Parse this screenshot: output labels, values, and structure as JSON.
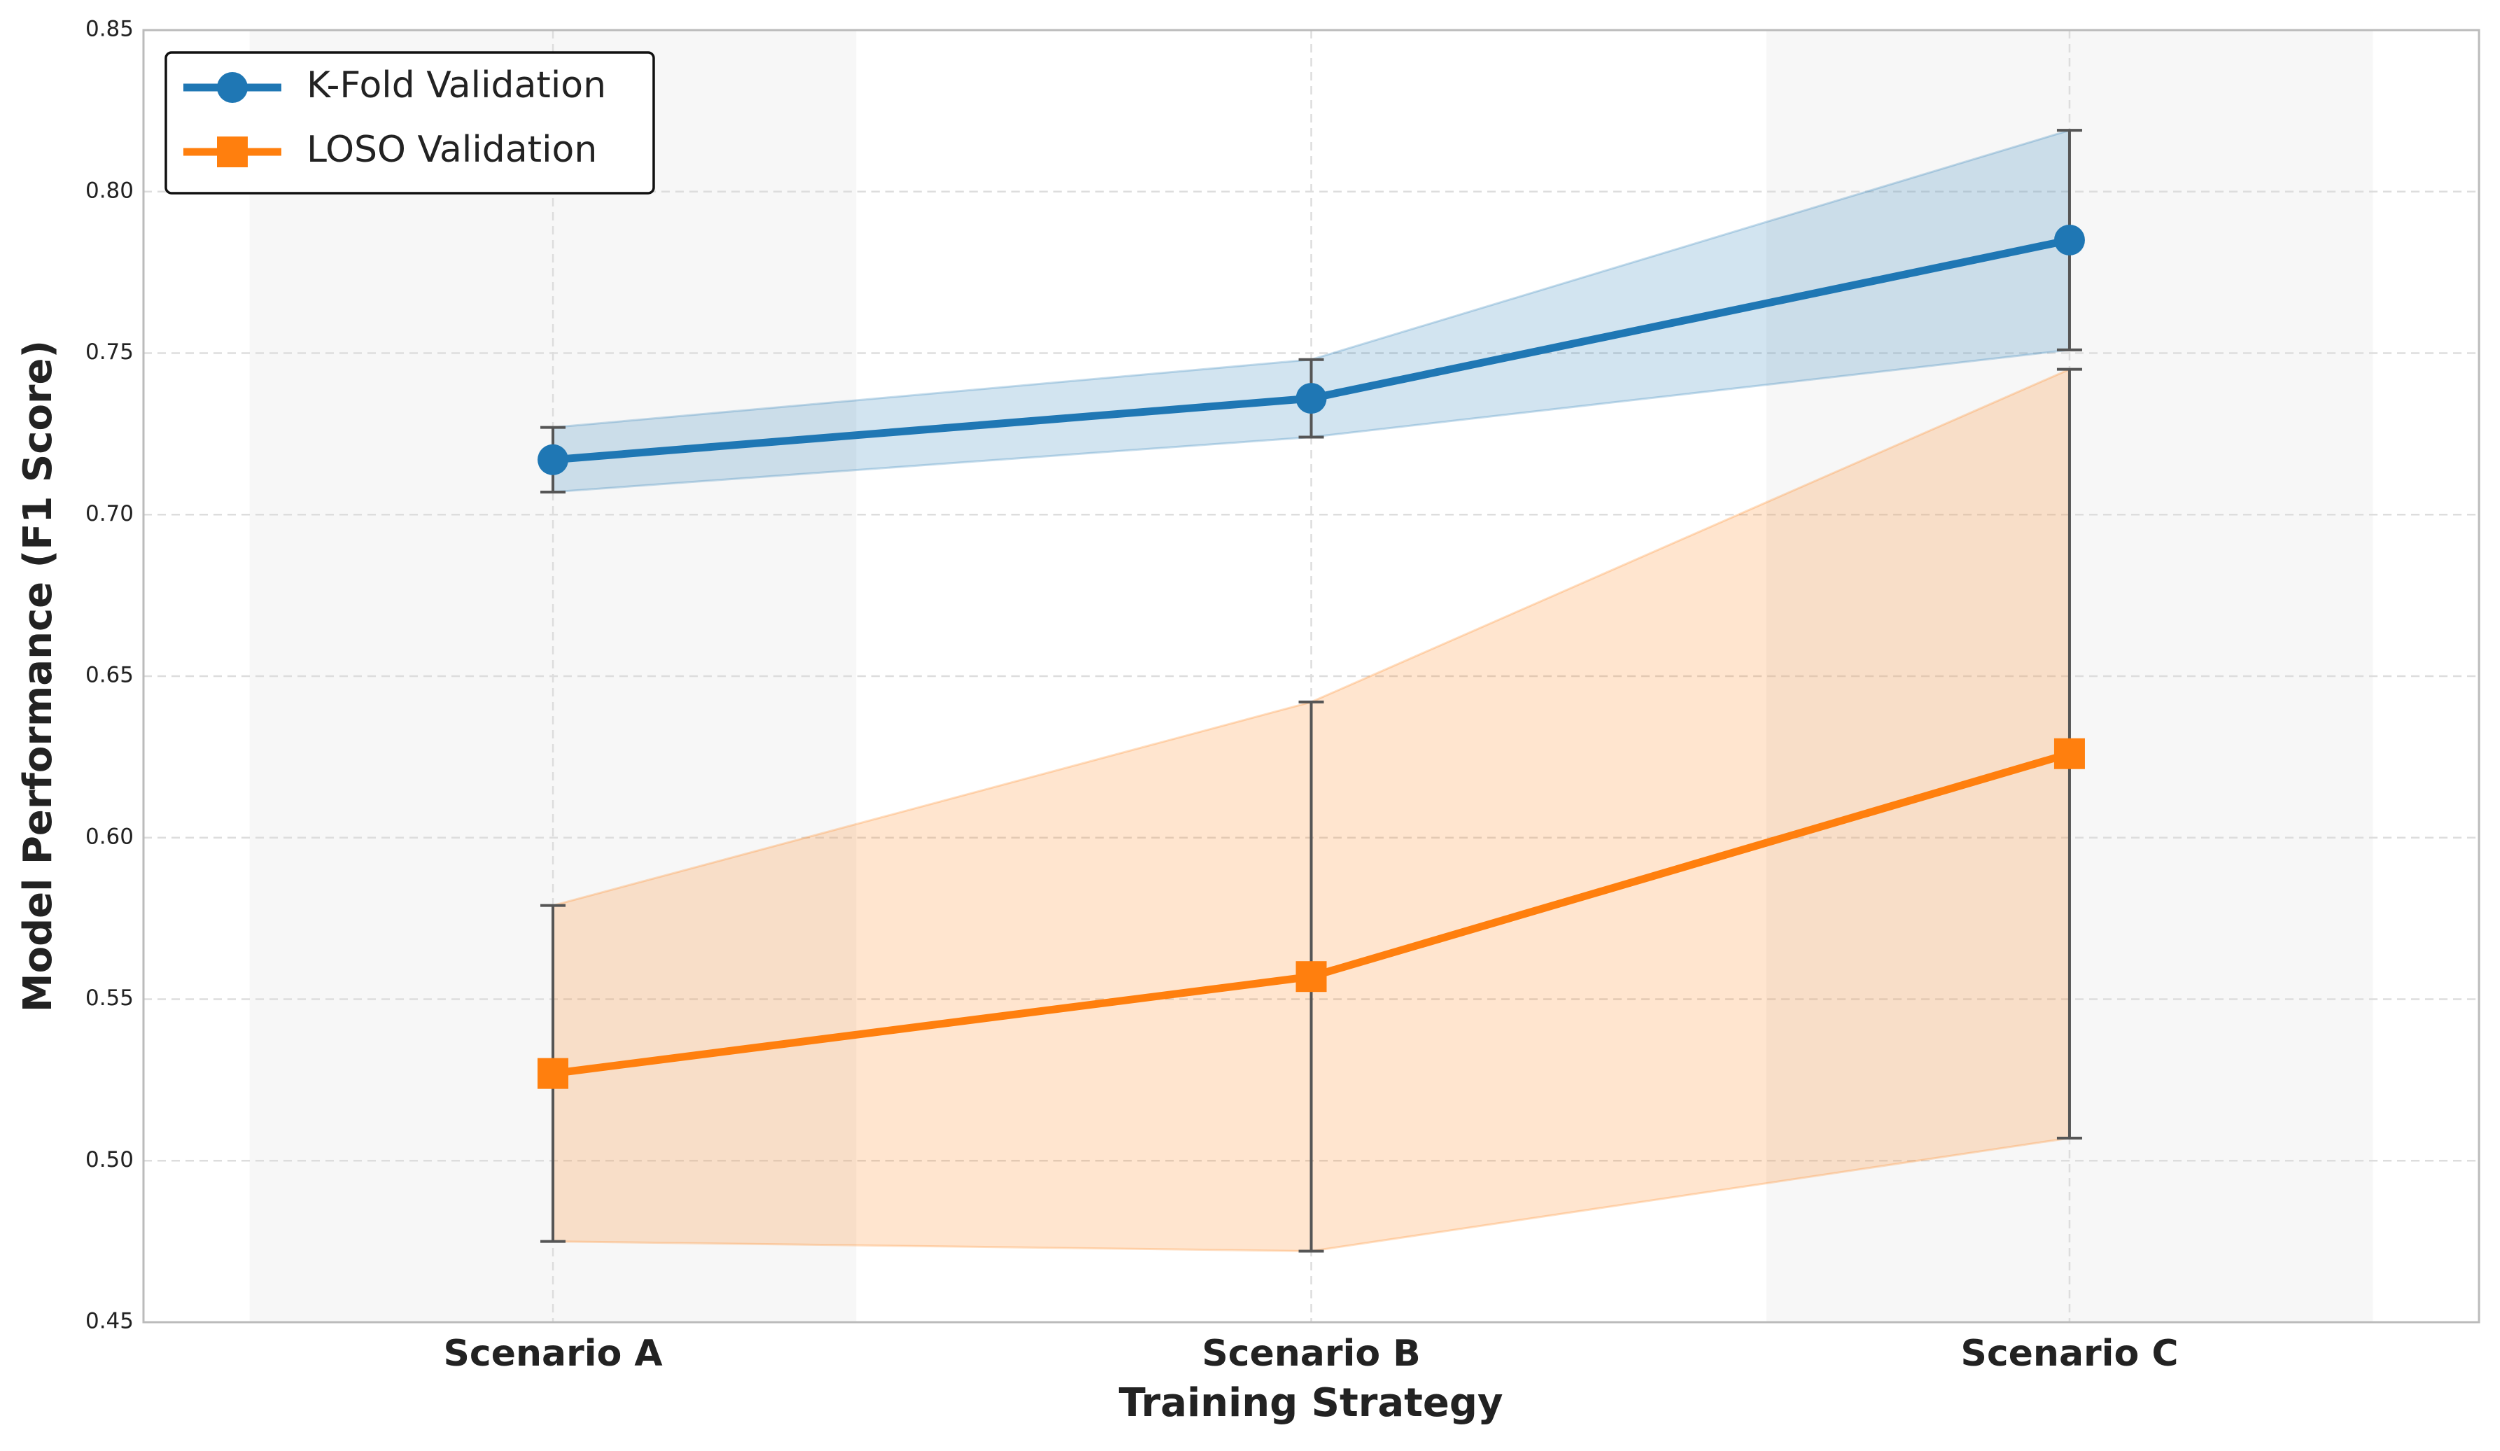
{
  "chart_data": {
    "type": "line",
    "xlabel": "Training Strategy",
    "ylabel": "Model Performance (F1 Score)",
    "categories": [
      "Scenario A",
      "Scenario B",
      "Scenario C"
    ],
    "series": [
      {
        "name": "K-Fold Validation",
        "color": "#1f77b4",
        "marker": "circle",
        "values": [
          0.717,
          0.736,
          0.785
        ],
        "errors": [
          0.01,
          0.012,
          0.034
        ]
      },
      {
        "name": "LOSO Validation",
        "color": "#ff7f0e",
        "marker": "square",
        "values": [
          0.527,
          0.557,
          0.626
        ],
        "errors": [
          0.052,
          0.085,
          0.119
        ]
      }
    ],
    "ylim": [
      0.45,
      0.85
    ],
    "yticks": [
      {
        "value": 0.45,
        "label": "0.45"
      },
      {
        "value": 0.5,
        "label": "0.50"
      },
      {
        "value": 0.55,
        "label": "0.55"
      },
      {
        "value": 0.6,
        "label": "0.60"
      },
      {
        "value": 0.65,
        "label": "0.65"
      },
      {
        "value": 0.7,
        "label": "0.70"
      },
      {
        "value": 0.75,
        "label": "0.75"
      },
      {
        "value": 0.8,
        "label": "0.80"
      },
      {
        "value": 0.85,
        "label": "0.85"
      }
    ],
    "grid": true,
    "legend": "upper left"
  }
}
